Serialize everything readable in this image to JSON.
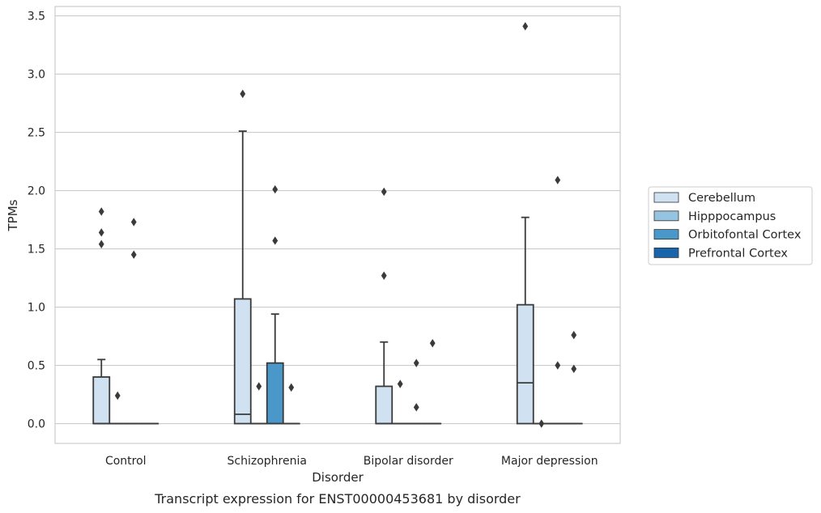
{
  "chart_data": {
    "type": "boxplot",
    "caption": "Transcript expression for ENST00000453681 by disorder",
    "xlabel": "Disorder",
    "ylabel": "TPMs",
    "ylim": [
      -0.17,
      3.58
    ],
    "yticks": [
      0.0,
      0.5,
      1.0,
      1.5,
      2.0,
      2.5,
      3.0,
      3.5
    ],
    "ytick_labels": [
      "0.0",
      "0.5",
      "1.0",
      "1.5",
      "2.0",
      "2.5",
      "3.0",
      "3.5"
    ],
    "grid": "horizontal",
    "legend_position": "right",
    "categories": [
      "Control",
      "Schizophrenia",
      "Bipolar disorder",
      "Major depression"
    ],
    "series": [
      {
        "name": "Cerebellum",
        "color": "#d0e1f2",
        "boxes": [
          {
            "q1": 0.0,
            "median": 0.0,
            "q3": 0.4,
            "whisker_low": 0.0,
            "whisker_high": 0.55,
            "outliers": [
              1.82,
              1.64,
              1.54
            ]
          },
          {
            "q1": 0.0,
            "median": 0.08,
            "q3": 1.07,
            "whisker_low": 0.0,
            "whisker_high": 2.51,
            "outliers": [
              2.83
            ]
          },
          {
            "q1": 0.0,
            "median": 0.0,
            "q3": 0.32,
            "whisker_low": 0.0,
            "whisker_high": 0.7,
            "outliers": [
              1.99,
              1.27
            ]
          },
          {
            "q1": 0.0,
            "median": 0.35,
            "q3": 1.02,
            "whisker_low": 0.0,
            "whisker_high": 1.77,
            "outliers": [
              3.41
            ]
          }
        ]
      },
      {
        "name": "Hipppocampus",
        "color": "#94c4df",
        "boxes": [
          {
            "q1": 0.0,
            "median": 0.0,
            "q3": 0.0,
            "whisker_low": 0.0,
            "whisker_high": 0.0,
            "outliers": [
              0.24
            ]
          },
          {
            "q1": 0.0,
            "median": 0.0,
            "q3": 0.0,
            "whisker_low": 0.0,
            "whisker_high": 0.0,
            "outliers": [
              0.32
            ]
          },
          {
            "q1": 0.0,
            "median": 0.0,
            "q3": 0.0,
            "whisker_low": 0.0,
            "whisker_high": 0.0,
            "outliers": [
              0.34
            ]
          },
          {
            "q1": 0.0,
            "median": 0.0,
            "q3": 0.0,
            "whisker_low": 0.0,
            "whisker_high": 0.0,
            "outliers": [
              0.0
            ]
          }
        ]
      },
      {
        "name": "Orbitofontal Cortex",
        "color": "#4a98c9",
        "boxes": [
          {
            "q1": 0.0,
            "median": 0.0,
            "q3": 0.0,
            "whisker_low": 0.0,
            "whisker_high": 0.0,
            "outliers": [
              1.73,
              1.45
            ]
          },
          {
            "q1": 0.0,
            "median": 0.0,
            "q3": 0.52,
            "whisker_low": 0.0,
            "whisker_high": 0.94,
            "outliers": [
              2.01,
              1.57
            ]
          },
          {
            "q1": 0.0,
            "median": 0.0,
            "q3": 0.0,
            "whisker_low": 0.0,
            "whisker_high": 0.0,
            "outliers": [
              0.52,
              0.14
            ]
          },
          {
            "q1": 0.0,
            "median": 0.0,
            "q3": 0.0,
            "whisker_low": 0.0,
            "whisker_high": 0.0,
            "outliers": [
              2.09,
              0.5
            ]
          }
        ]
      },
      {
        "name": "Prefrontal Cortex",
        "color": "#1764ab",
        "boxes": [
          {
            "q1": 0.0,
            "median": 0.0,
            "q3": 0.0,
            "whisker_low": 0.0,
            "whisker_high": 0.0,
            "outliers": []
          },
          {
            "q1": 0.0,
            "median": 0.0,
            "q3": 0.0,
            "whisker_low": 0.0,
            "whisker_high": 0.0,
            "outliers": [
              0.31
            ]
          },
          {
            "q1": 0.0,
            "median": 0.0,
            "q3": 0.0,
            "whisker_low": 0.0,
            "whisker_high": 0.0,
            "outliers": [
              0.69
            ]
          },
          {
            "q1": 0.0,
            "median": 0.0,
            "q3": 0.0,
            "whisker_low": 0.0,
            "whisker_high": 0.0,
            "outliers": [
              0.76,
              0.47
            ]
          }
        ]
      }
    ]
  }
}
